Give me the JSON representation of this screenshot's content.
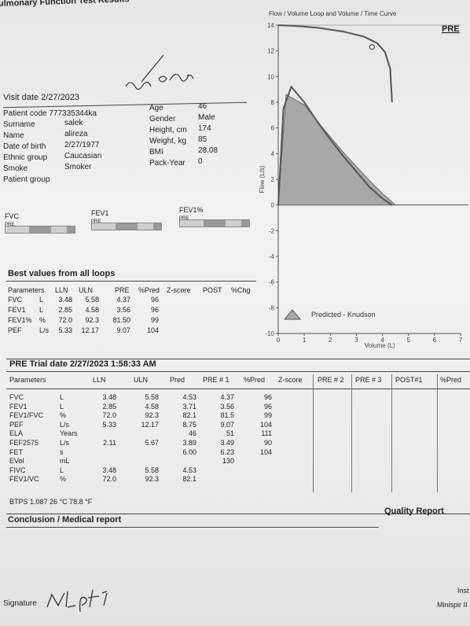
{
  "report": {
    "title": "ulmonary Function Test Results"
  },
  "visit": {
    "label": "Visit date 2/27/2023"
  },
  "patient": {
    "code_label": "Patient code 777335344ka",
    "surname_label": "Surname",
    "surname": "salek",
    "name_label": "Name",
    "name": "alireza",
    "dob_label": "Date of birth",
    "dob": "2/27/1977",
    "ethnic_label": "Ethnic group",
    "ethnic": "Caucasian",
    "smoke_label": "Smoke",
    "smoke": "Smoker",
    "group_label": "Patient group",
    "age_label": "Age",
    "age": "46",
    "gender_label": "Gender",
    "gender": "Male",
    "height_label": "Height, cm",
    "height": "174",
    "weight_label": "Weight, kg",
    "weight": "85",
    "bmi_label": "BMI",
    "bmi": "28.08",
    "pack_year_label": "Pack-Year",
    "pack_year": "0"
  },
  "gauges": [
    {
      "label": "FVC",
      "tag": "PRE"
    },
    {
      "label": "FEV1",
      "tag": "PRE"
    },
    {
      "label": "FEV1%",
      "tag": "PRE"
    }
  ],
  "best_values": {
    "title": "Best values from all loops",
    "headers": [
      "Parameters",
      "LLN",
      "ULN",
      "PRE",
      "%Pred",
      "Z-score",
      "POST",
      "%Chg"
    ],
    "rows": [
      {
        "param": "FVC",
        "unit": "L",
        "lln": "3.48",
        "uln": "5.58",
        "pre": "4.37",
        "pred": "96"
      },
      {
        "param": "FEV1",
        "unit": "L",
        "lln": "2.85",
        "uln": "4.58",
        "pre": "3.56",
        "pred": "96"
      },
      {
        "param": "FEV1%",
        "unit": "%",
        "lln": "72.0",
        "uln": "92.3",
        "pre": "81.50",
        "pred": "99"
      },
      {
        "param": "PEF",
        "unit": "L/s",
        "lln": "5.33",
        "uln": "12.17",
        "pre": "9.07",
        "pred": "104"
      }
    ]
  },
  "trial": {
    "title": "PRE Trial date 2/27/2023   1:58:33 AM",
    "headers": [
      "Parameters",
      "LLN",
      "ULN",
      "Pred",
      "PRE # 1",
      "%Pred",
      "Z-score",
      "PRE # 2",
      "PRE # 3",
      "POST#1",
      "%Pred"
    ],
    "rows": [
      {
        "param": "FVC",
        "unit": "L",
        "lln": "3.48",
        "uln": "5.58",
        "pred": "4.53",
        "pre1": "4.37",
        "pct": "96"
      },
      {
        "param": "FEV1",
        "unit": "L",
        "lln": "2.85",
        "uln": "4.58",
        "pred": "3.71",
        "pre1": "3.56",
        "pct": "96"
      },
      {
        "param": "FEV1/FVC",
        "unit": "%",
        "lln": "72.0",
        "uln": "92.3",
        "pred": "82.1",
        "pre1": "81.5",
        "pct": "99"
      },
      {
        "param": "PEF",
        "unit": "L/s",
        "lln": "5.33",
        "uln": "12.17",
        "pred": "8.75",
        "pre1": "9.07",
        "pct": "104"
      },
      {
        "param": "ELA",
        "unit": "Years",
        "lln": "",
        "uln": "",
        "pred": "46",
        "pre1": "51",
        "pct": "111"
      },
      {
        "param": "FEF2575",
        "unit": "L/s",
        "lln": "2.11",
        "uln": "5.67",
        "pred": "3.89",
        "pre1": "3.49",
        "pct": "90"
      },
      {
        "param": "FET",
        "unit": "s",
        "lln": "",
        "uln": "",
        "pred": "6.00",
        "pre1": "6.23",
        "pct": "104"
      },
      {
        "param": "EVol",
        "unit": "mL",
        "lln": "",
        "uln": "",
        "pred": "",
        "pre1": "130",
        "pct": ""
      },
      {
        "param": "FIVC",
        "unit": "L",
        "lln": "3.48",
        "uln": "5.58",
        "pred": "4.53",
        "pre1": "",
        "pct": ""
      },
      {
        "param": "FEV1/VC",
        "unit": "%",
        "lln": "72.0",
        "uln": "92.3",
        "pred": "82.1",
        "pre1": "",
        "pct": ""
      }
    ],
    "btps": "BTPS 1.087  26 °C  78.8 °F"
  },
  "chart_data": {
    "type": "line",
    "title": "Flow / Volume Loop and Volume / Time Curve",
    "tag": "PRE",
    "xlabel": "Volume (L)",
    "ylabel": "Flow (L/s)",
    "xlim": [
      0,
      7
    ],
    "ylim": [
      -10,
      14
    ],
    "xticks": [
      0,
      1,
      2,
      3,
      4,
      5,
      6,
      7
    ],
    "yticks": [
      -10,
      -8,
      -6,
      -4,
      -2,
      0,
      2,
      4,
      6,
      8,
      10,
      12,
      14
    ],
    "legend": "Predicted - Knudson",
    "predicted_area": {
      "x": [
        0,
        0.3,
        1.0,
        1.5,
        2.0,
        2.5,
        3.0,
        3.5,
        4.0,
        4.5
      ],
      "y": [
        0,
        8.6,
        7.8,
        6.5,
        5.3,
        4.1,
        3.0,
        1.9,
        0.9,
        0
      ]
    },
    "flow_curve": {
      "x": [
        0,
        0.2,
        0.5,
        1.0,
        1.5,
        2.0,
        2.5,
        3.0,
        3.5,
        4.0,
        4.37
      ],
      "y": [
        0,
        7.5,
        9.2,
        8.0,
        6.5,
        5.1,
        3.8,
        2.6,
        1.4,
        0.5,
        0
      ]
    },
    "volume_time_curve": {
      "x": [
        0,
        0.6,
        1.5,
        2.5,
        3.3,
        3.8,
        4.1,
        4.3,
        4.37
      ],
      "y": [
        14,
        13.95,
        13.8,
        13.5,
        13.1,
        12.6,
        11.9,
        10.6,
        8.0
      ]
    },
    "marker": {
      "x": 3.6,
      "y": 12.3
    }
  },
  "footer": {
    "conclusion": "Conclusion / Medical report",
    "quality": "Quality Report",
    "signature_label": "Signature",
    "inst": "Inst",
    "device": "Minispir II"
  }
}
